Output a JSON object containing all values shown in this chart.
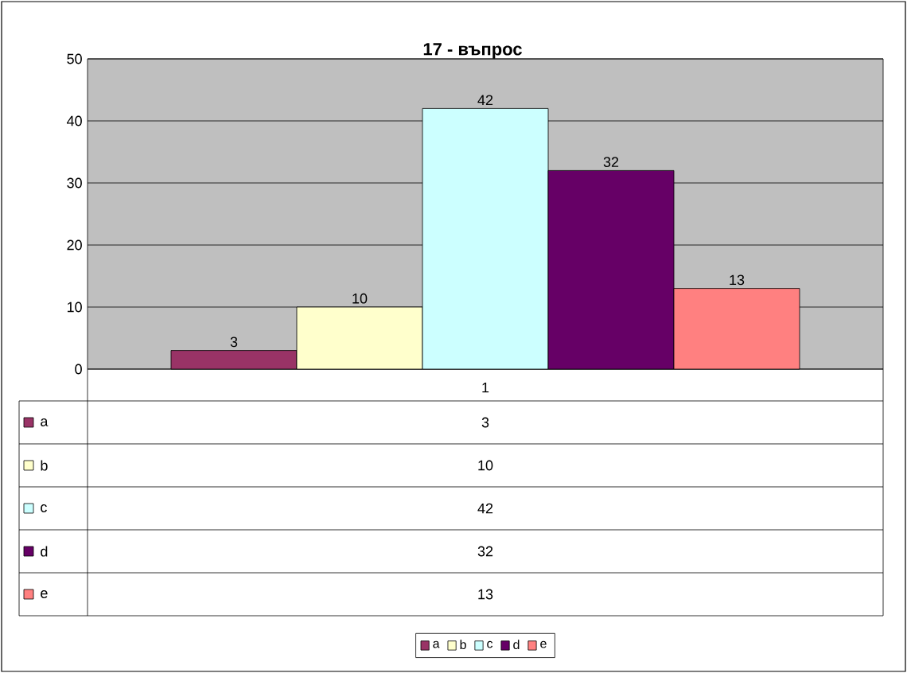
{
  "chart_data": {
    "type": "bar",
    "title": "17 - въпрос",
    "categories": [
      "1"
    ],
    "series": [
      {
        "name": "a",
        "color": "#993366",
        "values": [
          3
        ],
        "value_labels": [
          "3"
        ]
      },
      {
        "name": "b",
        "color": "#ffffcc",
        "values": [
          10
        ],
        "value_labels": [
          "10"
        ]
      },
      {
        "name": "c",
        "color": "#ccffff",
        "values": [
          42
        ],
        "value_labels": [
          "42"
        ]
      },
      {
        "name": "d",
        "color": "#660066",
        "values": [
          32
        ],
        "value_labels": [
          "32"
        ]
      },
      {
        "name": "e",
        "color": "#ff8080",
        "values": [
          13
        ],
        "value_labels": [
          "13"
        ]
      }
    ],
    "ylim": [
      0,
      50
    ],
    "yticks": [
      0,
      10,
      20,
      30,
      40,
      50
    ],
    "grid": "y",
    "legend": "bottom"
  }
}
